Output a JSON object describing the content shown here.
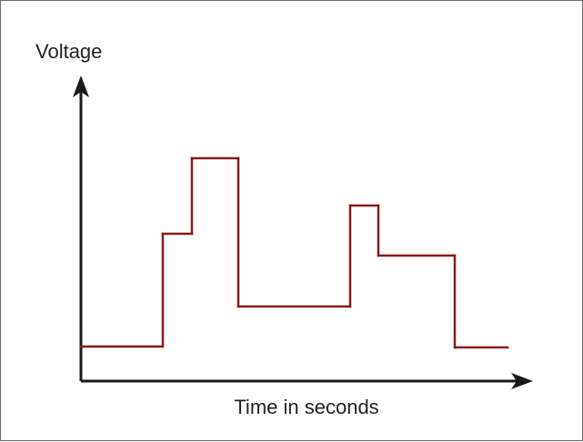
{
  "chart_data": {
    "type": "line",
    "step": true,
    "title": "",
    "ylabel": "Voltage",
    "xlabel": "Time in seconds",
    "x_ticks": "none",
    "y_ticks": "none",
    "grid": false,
    "legend": "none",
    "xlim": [
      0,
      500
    ],
    "ylim": [
      0,
      300
    ],
    "series": [
      {
        "color": "#8b1a1a",
        "points": [
          [
            0,
            38
          ],
          [
            90,
            38
          ],
          [
            90,
            162
          ],
          [
            122,
            162
          ],
          [
            122,
            245
          ],
          [
            173,
            245
          ],
          [
            173,
            82
          ],
          [
            296,
            82
          ],
          [
            296,
            193
          ],
          [
            327,
            193
          ],
          [
            327,
            138
          ],
          [
            411,
            138
          ],
          [
            411,
            37
          ],
          [
            469,
            37
          ]
        ]
      }
    ]
  }
}
